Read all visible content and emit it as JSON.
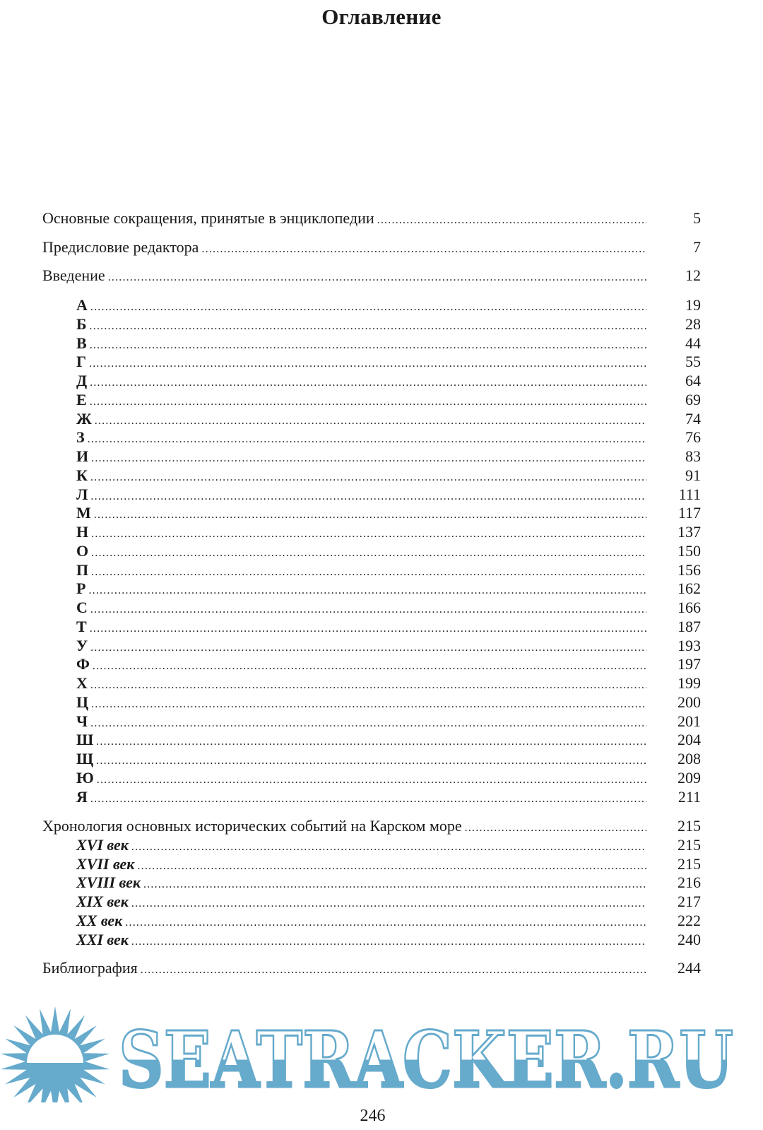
{
  "title": "Оглавление",
  "front_matter": [
    {
      "label": "Основные сокращения, принятые в энциклопедии",
      "page": "5"
    },
    {
      "label": "Предисловие редактора",
      "page": "7"
    },
    {
      "label": "Введение",
      "page": "12"
    }
  ],
  "letters": [
    {
      "label": "А",
      "page": "19"
    },
    {
      "label": "Б",
      "page": "28"
    },
    {
      "label": "В",
      "page": "44"
    },
    {
      "label": "Г",
      "page": "55"
    },
    {
      "label": "Д",
      "page": "64"
    },
    {
      "label": "Е",
      "page": "69"
    },
    {
      "label": "Ж",
      "page": "74"
    },
    {
      "label": "З",
      "page": "76"
    },
    {
      "label": "И",
      "page": "83"
    },
    {
      "label": "К",
      "page": "91"
    },
    {
      "label": "Л",
      "page": "111"
    },
    {
      "label": "М",
      "page": "117"
    },
    {
      "label": "Н",
      "page": "137"
    },
    {
      "label": "О",
      "page": "150"
    },
    {
      "label": "П",
      "page": "156"
    },
    {
      "label": "Р",
      "page": "162"
    },
    {
      "label": "С",
      "page": "166"
    },
    {
      "label": "Т",
      "page": "187"
    },
    {
      "label": "У",
      "page": "193"
    },
    {
      "label": "Ф",
      "page": "197"
    },
    {
      "label": "Х",
      "page": "199"
    },
    {
      "label": "Ц",
      "page": "200"
    },
    {
      "label": "Ч",
      "page": "201"
    },
    {
      "label": "Ш",
      "page": "204"
    },
    {
      "label": "Щ",
      "page": "208"
    },
    {
      "label": "Ю",
      "page": "209"
    },
    {
      "label": "Я",
      "page": "211"
    }
  ],
  "chronology": {
    "label": "Хронология основных исторических событий на Карском море",
    "page": "215"
  },
  "centuries": [
    {
      "label": "XVI век",
      "page": "215"
    },
    {
      "label": "XVII век",
      "page": "215"
    },
    {
      "label": "XVIII век",
      "page": "216"
    },
    {
      "label": "XIX век",
      "page": "217"
    },
    {
      "label": "XX век",
      "page": "222"
    },
    {
      "label": "XXI век",
      "page": "240"
    }
  ],
  "bibliography": {
    "label": "Библиография",
    "page": "244"
  },
  "page_number": "246",
  "watermark": {
    "text": "SEATRACKER.RU",
    "color": "#66aacc",
    "icon": "sun-over-sea-icon"
  }
}
